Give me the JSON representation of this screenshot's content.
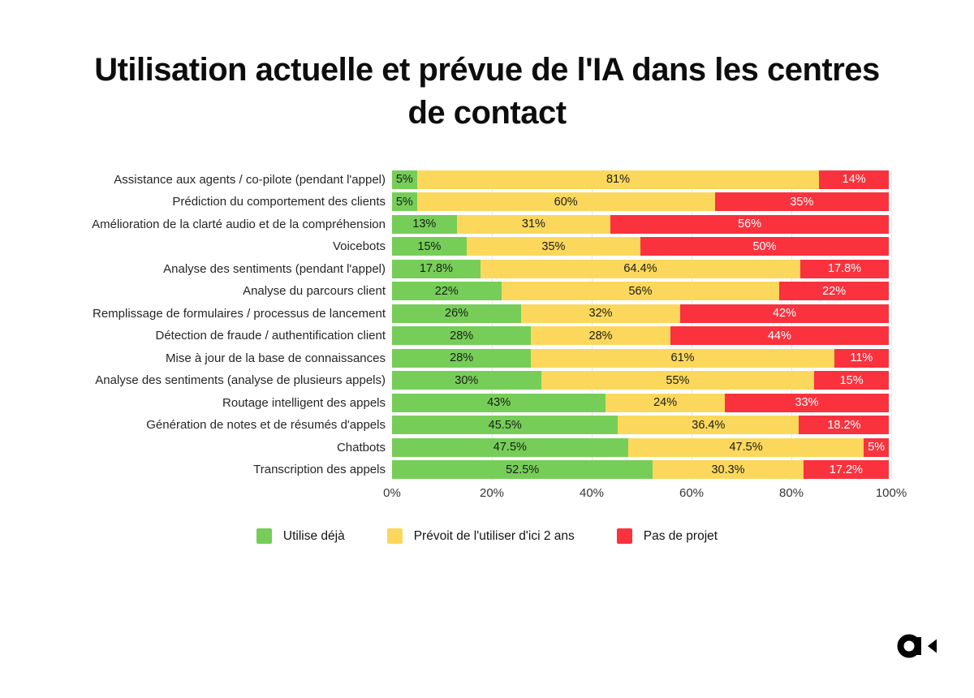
{
  "title": "Utilisation actuelle et prévue de l'IA dans les centres de contact",
  "colors": {
    "green": "#76CE58",
    "yellow": "#FBD85C",
    "red": "#F9323E",
    "text_on_light": "#1b1b1b",
    "text_on_red": "#ffffff",
    "gridline": "#e8e8e8"
  },
  "chart_data": {
    "type": "bar",
    "stacked": true,
    "orientation": "horizontal",
    "title": "Utilisation actuelle et prévue de l'IA dans les centres de contact",
    "categories": [
      "Assistance aux agents / co-pilote (pendant l'appel)",
      "Prédiction du comportement des clients",
      "Amélioration de la clarté audio et de la compréhension",
      "Voicebots",
      "Analyse des sentiments (pendant l'appel)",
      "Analyse du parcours client",
      "Remplissage de formulaires / processus de lancement",
      "Détection de fraude / authentification client",
      "Mise à jour de la base de connaissances",
      "Analyse des sentiments (analyse de plusieurs appels)",
      "Routage intelligent des appels",
      "Génération de notes et de résumés d'appels",
      "Chatbots",
      "Transcription des appels"
    ],
    "series": [
      {
        "name": "Utilise déjà",
        "color": "#76CE58",
        "text_color": "#1b1b1b",
        "values": [
          5,
          5,
          13,
          15,
          17.8,
          22,
          26,
          28,
          28,
          30,
          43,
          45.5,
          47.5,
          52.5
        ]
      },
      {
        "name": "Prévoit de l'utiliser d'ici 2 ans",
        "color": "#FBD85C",
        "text_color": "#1b1b1b",
        "values": [
          81,
          60,
          31,
          35,
          64.4,
          56,
          32,
          28,
          61,
          55,
          24,
          36.4,
          47.5,
          30.3
        ]
      },
      {
        "name": "Pas de projet",
        "color": "#F9323E",
        "text_color": "#ffffff",
        "values": [
          14,
          35,
          56,
          50,
          17.8,
          22,
          42,
          44,
          11,
          15,
          33,
          18.2,
          5,
          17.2
        ]
      }
    ],
    "value_suffix": "%",
    "x_ticks": [
      "0%",
      "20%",
      "40%",
      "60%",
      "80%",
      "100%"
    ],
    "xlim": [
      0,
      100
    ],
    "grid": "vertical",
    "grid_positions": [
      20,
      40,
      60,
      80,
      100
    ],
    "legend_position": "bottom"
  },
  "logo": {
    "name": "brand-logo"
  }
}
